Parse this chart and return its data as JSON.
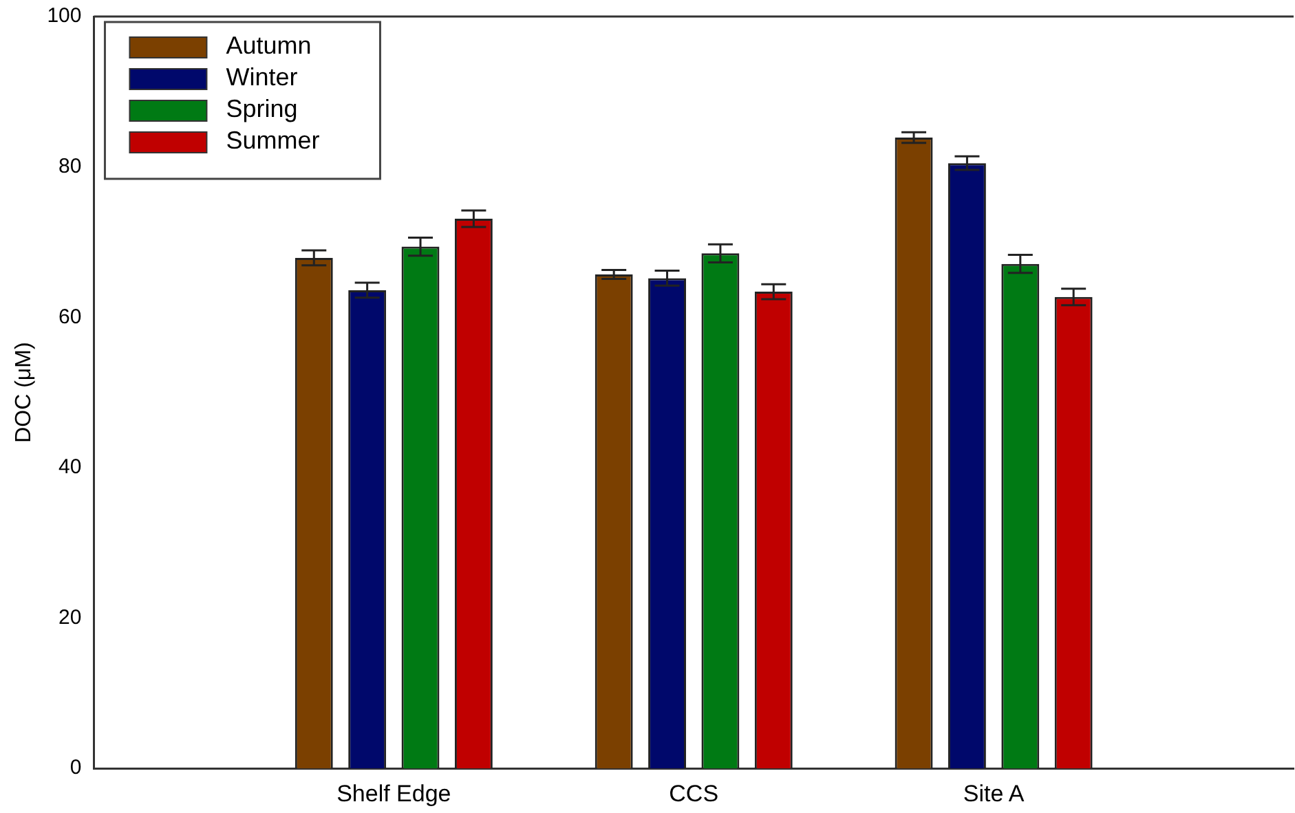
{
  "chart_data": {
    "type": "bar",
    "ylabel": "DOC (μM)",
    "categories": [
      "Shelf Edge",
      "CCS",
      "Site A"
    ],
    "series": [
      {
        "name": "Autumn",
        "color": "#7b4000",
        "values": [
          67.9,
          65.7,
          83.9
        ],
        "errors": [
          1,
          0.6,
          0.7
        ]
      },
      {
        "name": "Winter",
        "color": "#00086b",
        "values": [
          63.6,
          65.2,
          80.5
        ],
        "errors": [
          1,
          1,
          0.9
        ]
      },
      {
        "name": "Spring",
        "color": "#007a14",
        "values": [
          69.4,
          68.5,
          67.1
        ],
        "errors": [
          1.2,
          1.2,
          1.2
        ]
      },
      {
        "name": "Summer",
        "color": "#c00000",
        "values": [
          73.1,
          63.4,
          62.7
        ],
        "errors": [
          1.1,
          1,
          1.1
        ]
      }
    ],
    "ylim": [
      0,
      100
    ],
    "yticks": [
      0,
      20,
      40,
      60,
      80,
      100
    ],
    "grid": false,
    "legend": "top left"
  }
}
